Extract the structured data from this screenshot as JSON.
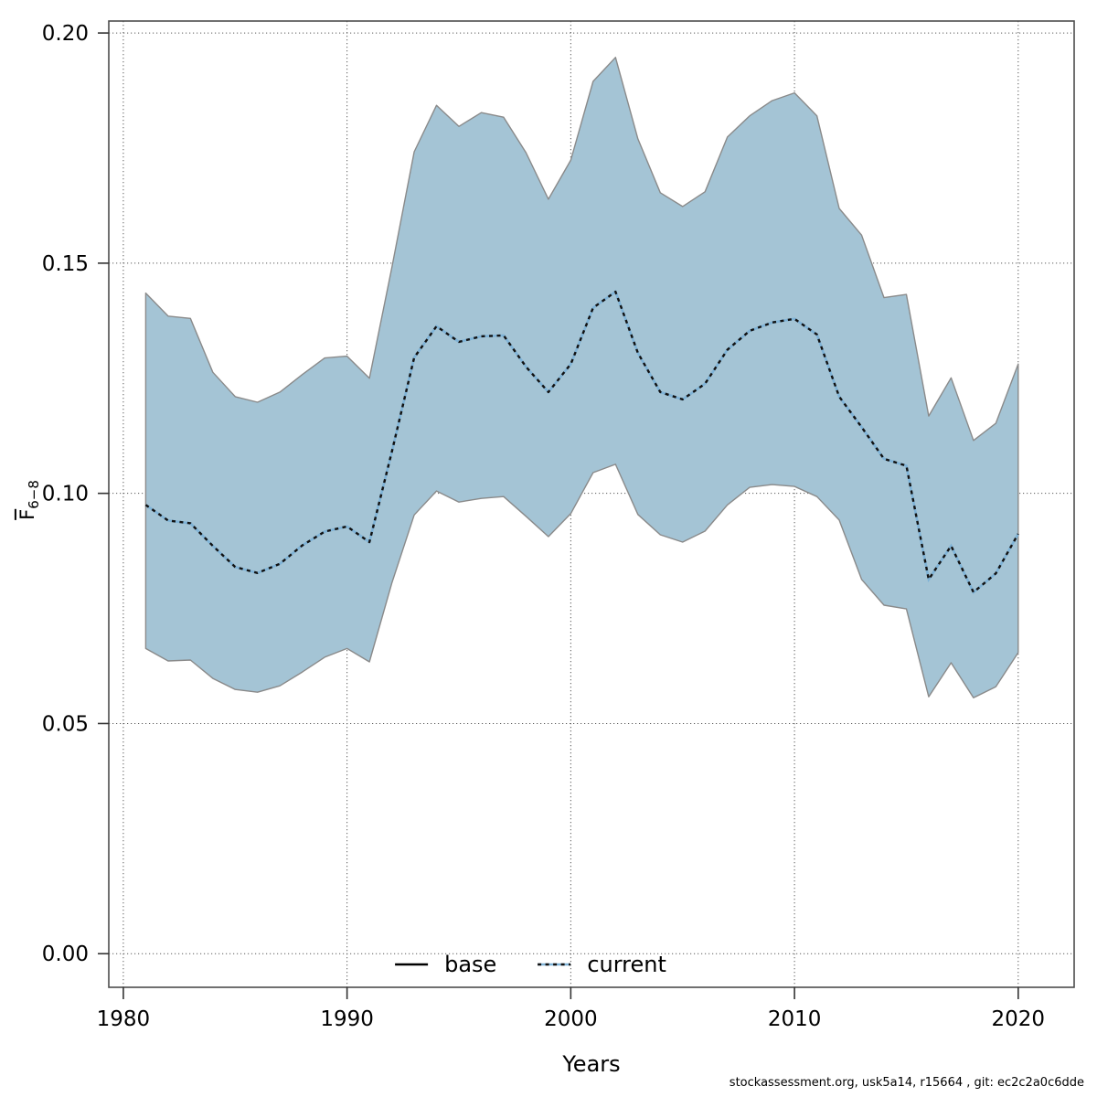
{
  "figure": {
    "watermark": "stockassessment.org, usk5a14, r15664 , git: ec2c2a0c6dde"
  },
  "chart_data": {
    "type": "area",
    "title": "",
    "xlabel": "Years",
    "ylabel": "F",
    "ylabel_sub": "6−8",
    "grid": true,
    "legend_position": "bottom-center-inside",
    "x_ticks": [
      1980,
      1990,
      2000,
      2010,
      2020
    ],
    "x_tick_labels": [
      "1980",
      "1990",
      "2000",
      "2010",
      "2020"
    ],
    "y_ticks": [
      0.0,
      0.05,
      0.1,
      0.15,
      0.2
    ],
    "y_tick_labels": [
      "0.00",
      "0.05",
      "0.10",
      "0.15",
      "0.20"
    ],
    "xlim": [
      1979.35,
      2022.5
    ],
    "ylim": [
      -0.0073,
      0.2026
    ],
    "legend": [
      {
        "label": "base",
        "style": "solid",
        "color": "#000000"
      },
      {
        "label": "current",
        "style": "dotted",
        "color": "#7fb3d7"
      }
    ],
    "band_color": "#a4c4d5",
    "band_edge_color": "#8a8a8a",
    "current_dash_color": "#111111",
    "years": [
      1981,
      1982,
      1983,
      1984,
      1985,
      1986,
      1987,
      1988,
      1989,
      1990,
      1991,
      1992,
      1993,
      1994,
      1995,
      1996,
      1997,
      1998,
      1999,
      2000,
      2001,
      2002,
      2003,
      2004,
      2005,
      2006,
      2007,
      2008,
      2009,
      2010,
      2011,
      2012,
      2013,
      2014,
      2015,
      2016,
      2017,
      2018,
      2019,
      2020
    ],
    "series": [
      {
        "name": "current",
        "values": [
          0.0975,
          0.0941,
          0.0935,
          0.0886,
          0.084,
          0.0827,
          0.0847,
          0.0887,
          0.0917,
          0.0928,
          0.0894,
          0.109,
          0.1295,
          0.1363,
          0.1329,
          0.1341,
          0.1343,
          0.1275,
          0.122,
          0.1281,
          0.1403,
          0.1438,
          0.1305,
          0.122,
          0.1204,
          0.1238,
          0.1312,
          0.1353,
          0.1371,
          0.1379,
          0.1345,
          0.121,
          0.1144,
          0.1075,
          0.106,
          0.0813,
          0.0886,
          0.0785,
          0.0826,
          0.0912
        ]
      },
      {
        "name": "upper_ci",
        "values": [
          0.1435,
          0.1385,
          0.138,
          0.1263,
          0.121,
          0.1198,
          0.122,
          0.1258,
          0.1294,
          0.1298,
          0.125,
          0.149,
          0.1742,
          0.1843,
          0.1797,
          0.1827,
          0.1817,
          0.174,
          0.1639,
          0.1724,
          0.1895,
          0.1947,
          0.177,
          0.1653,
          0.1623,
          0.1655,
          0.1774,
          0.182,
          0.1853,
          0.187,
          0.182,
          0.1619,
          0.1561,
          0.1425,
          0.1432,
          0.1168,
          0.1251,
          0.1115,
          0.1152,
          0.1281
        ]
      },
      {
        "name": "lower_ci",
        "values": [
          0.0663,
          0.0636,
          0.0638,
          0.0598,
          0.0574,
          0.0568,
          0.0582,
          0.0612,
          0.0644,
          0.0663,
          0.0634,
          0.0805,
          0.0953,
          0.1005,
          0.0981,
          0.0989,
          0.0993,
          0.095,
          0.0906,
          0.0956,
          0.1045,
          0.1063,
          0.0954,
          0.091,
          0.0894,
          0.0918,
          0.0975,
          0.1013,
          0.1019,
          0.1015,
          0.0993,
          0.0942,
          0.0813,
          0.0757,
          0.0749,
          0.0558,
          0.0632,
          0.0556,
          0.058,
          0.0654
        ]
      }
    ]
  }
}
